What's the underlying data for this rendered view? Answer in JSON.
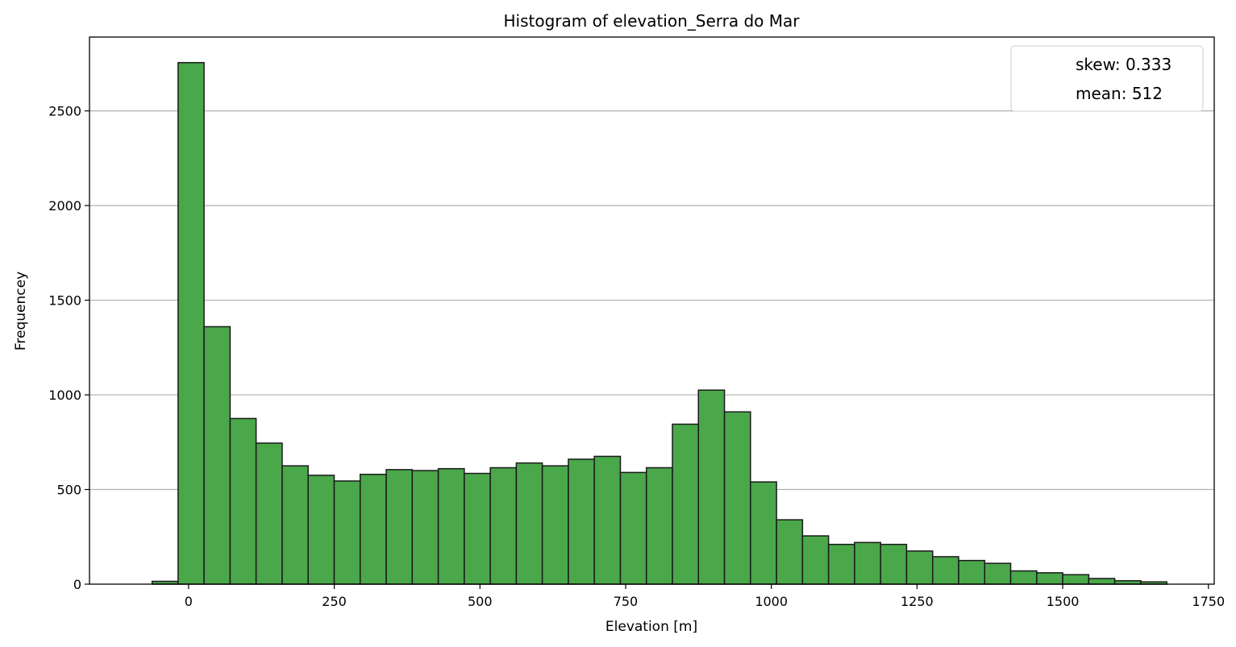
{
  "chart_data": {
    "type": "bar",
    "title": "Histogram of elevation_Serra do Mar",
    "xlabel": "Elevation [m]",
    "ylabel": "Frequencey",
    "xlim": [
      -170,
      1760
    ],
    "ylim": [
      0,
      2890
    ],
    "xticks": [
      0,
      250,
      500,
      750,
      1000,
      1250,
      1500,
      1750
    ],
    "yticks": [
      0,
      500,
      1000,
      1500,
      2000,
      2500
    ],
    "grid": "y",
    "legend": {
      "position": "upper right",
      "entries": [
        "skew: 0.333",
        "mean: 512"
      ]
    },
    "bar_color": "#4aa74a",
    "edge_color": "#1a1a1a",
    "bins": [
      {
        "x0": -62.5,
        "x1": -18.0,
        "count": 15
      },
      {
        "x0": -18.0,
        "x1": 26.6,
        "count": 2755
      },
      {
        "x0": 26.6,
        "x1": 71.3,
        "count": 1360
      },
      {
        "x0": 71.3,
        "x1": 115.9,
        "count": 875
      },
      {
        "x0": 115.9,
        "x1": 160.6,
        "count": 745
      },
      {
        "x0": 160.6,
        "x1": 205.2,
        "count": 625
      },
      {
        "x0": 205.2,
        "x1": 249.9,
        "count": 575
      },
      {
        "x0": 249.9,
        "x1": 294.5,
        "count": 545
      },
      {
        "x0": 294.5,
        "x1": 339.2,
        "count": 580
      },
      {
        "x0": 339.2,
        "x1": 383.8,
        "count": 605
      },
      {
        "x0": 383.8,
        "x1": 428.5,
        "count": 600
      },
      {
        "x0": 428.5,
        "x1": 473.1,
        "count": 610
      },
      {
        "x0": 473.1,
        "x1": 517.8,
        "count": 585
      },
      {
        "x0": 517.8,
        "x1": 562.4,
        "count": 615
      },
      {
        "x0": 562.4,
        "x1": 607.0,
        "count": 640
      },
      {
        "x0": 607.0,
        "x1": 651.7,
        "count": 625
      },
      {
        "x0": 651.7,
        "x1": 696.3,
        "count": 660
      },
      {
        "x0": 696.3,
        "x1": 741.0,
        "count": 675
      },
      {
        "x0": 741.0,
        "x1": 785.6,
        "count": 590
      },
      {
        "x0": 785.6,
        "x1": 830.3,
        "count": 615
      },
      {
        "x0": 830.3,
        "x1": 874.9,
        "count": 845
      },
      {
        "x0": 874.9,
        "x1": 919.6,
        "count": 1025
      },
      {
        "x0": 919.6,
        "x1": 964.2,
        "count": 910
      },
      {
        "x0": 964.2,
        "x1": 1008.9,
        "count": 540
      },
      {
        "x0": 1008.9,
        "x1": 1053.5,
        "count": 340
      },
      {
        "x0": 1053.5,
        "x1": 1098.2,
        "count": 255
      },
      {
        "x0": 1098.2,
        "x1": 1142.8,
        "count": 210
      },
      {
        "x0": 1142.8,
        "x1": 1187.5,
        "count": 220
      },
      {
        "x0": 1187.5,
        "x1": 1232.1,
        "count": 210
      },
      {
        "x0": 1232.1,
        "x1": 1276.8,
        "count": 175
      },
      {
        "x0": 1276.8,
        "x1": 1321.4,
        "count": 145
      },
      {
        "x0": 1321.4,
        "x1": 1366.1,
        "count": 125
      },
      {
        "x0": 1366.1,
        "x1": 1410.7,
        "count": 110
      },
      {
        "x0": 1410.7,
        "x1": 1455.4,
        "count": 70
      },
      {
        "x0": 1455.4,
        "x1": 1500.0,
        "count": 60
      },
      {
        "x0": 1500.0,
        "x1": 1544.7,
        "count": 50
      },
      {
        "x0": 1544.7,
        "x1": 1589.3,
        "count": 30
      },
      {
        "x0": 1589.3,
        "x1": 1634.0,
        "count": 18
      },
      {
        "x0": 1634.0,
        "x1": 1678.6,
        "count": 12
      }
    ]
  }
}
